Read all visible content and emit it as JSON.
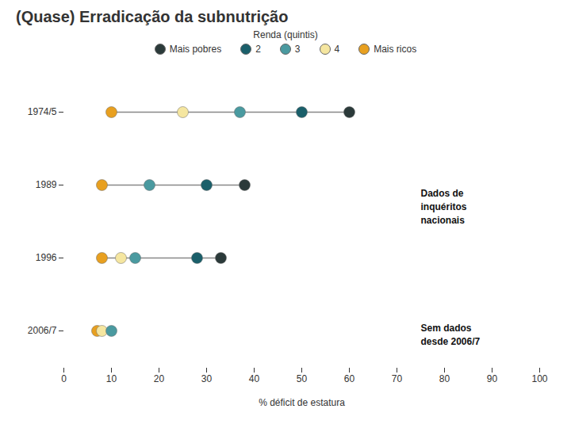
{
  "chart_data": {
    "type": "dot",
    "title": "(Quase) Erradicação da subnutrição",
    "x_label": "% déficit de estatura",
    "legend_title": "Renda (quintis)",
    "categories": [
      "1974/5",
      "1989",
      "1996",
      "2006/7"
    ],
    "series": [
      {
        "name": "Mais pobres",
        "color": "#2b3a3a",
        "values": [
          60,
          38,
          33,
          null
        ]
      },
      {
        "name": "2",
        "color": "#1a5f6a",
        "values": [
          50,
          30,
          28,
          null
        ]
      },
      {
        "name": "3",
        "color": "#4a9aa0",
        "values": [
          37,
          18,
          15,
          10
        ]
      },
      {
        "name": "4",
        "color": "#f5e6a0",
        "values": [
          25,
          null,
          12,
          8
        ]
      },
      {
        "name": "Mais ricos",
        "color": "#e8a020",
        "values": [
          10,
          8,
          8,
          7
        ]
      }
    ],
    "xlim": [
      0,
      100
    ],
    "xticks": [
      0,
      10,
      20,
      30,
      40,
      50,
      60,
      70,
      80,
      90,
      100
    ],
    "annotations": [
      "Dados de\ninquéritos\nnacionais",
      "Sem dados\ndesde 2006/7"
    ],
    "grid": false,
    "legend": "top"
  }
}
